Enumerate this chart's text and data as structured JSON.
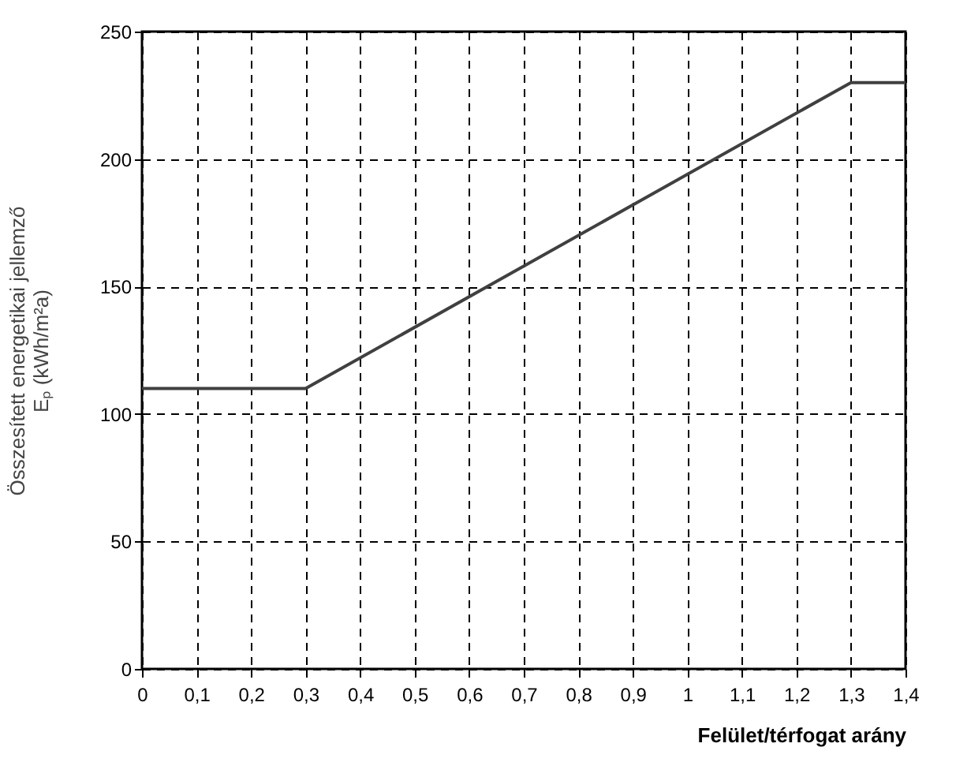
{
  "chart_data": {
    "type": "line",
    "xlabel": "Felület/térfogat arány",
    "ylabel": "Összesített energetikai jellemző\nEₚ (kWh/m²a)",
    "x": [
      0,
      0.3,
      1.3,
      1.4
    ],
    "series": [
      {
        "color": "#404040",
        "values": [
          110,
          110,
          230,
          230
        ]
      }
    ],
    "xlim": [
      0,
      1.4
    ],
    "xticks": [
      0,
      {
        "value": 0.1,
        "label": "0,1"
      },
      {
        "value": 0.2,
        "label": "0,2"
      },
      {
        "value": 0.3,
        "label": "0,3"
      },
      {
        "value": 0.4,
        "label": "0,4"
      },
      {
        "value": 0.5,
        "label": "0,5"
      },
      {
        "value": 0.6,
        "label": "0,6"
      },
      {
        "value": 0.7,
        "label": "0,7"
      },
      {
        "value": 0.8,
        "label": "0,8"
      },
      {
        "value": 0.9,
        "label": "0,9"
      },
      1,
      {
        "value": 1.1,
        "label": "1,1"
      },
      {
        "value": 1.2,
        "label": "1,2"
      },
      {
        "value": 1.3,
        "label": "1,3"
      },
      {
        "value": 1.4,
        "label": "1,4"
      }
    ],
    "ylim": [
      0,
      250
    ],
    "yticks": [
      0,
      50,
      100,
      150,
      200,
      250
    ],
    "grid": true,
    "marker": "none",
    "line_style": "solid"
  }
}
